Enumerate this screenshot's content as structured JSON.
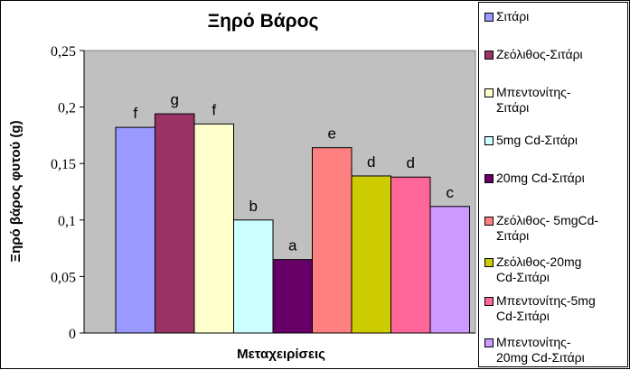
{
  "chart_data": {
    "type": "bar",
    "title": "Ξηρό Βάρος",
    "xlabel": "Μεταχειρίσεις",
    "ylabel": "Ξηρό βάρος φυτού (g)",
    "ylim": [
      0,
      0.25
    ],
    "yticks": [
      "0",
      "0,05",
      "0,1",
      "0,15",
      "0,2",
      "0,25"
    ],
    "grid": false,
    "plot_background": "#c0c0c0",
    "legend_position": "right",
    "series": [
      {
        "name": "Σιτάρι",
        "value": 0.182,
        "letter": "f",
        "color": "#9999ff"
      },
      {
        "name": "Ζεόλιθος-Σιτάρι",
        "value": 0.194,
        "letter": "g",
        "color": "#993366"
      },
      {
        "name": "Μπεντονίτης-Σιτάρι",
        "value": 0.185,
        "letter": "f",
        "color": "#ffffcc"
      },
      {
        "name": "5mg Cd-Σιτάρι",
        "value": 0.1,
        "letter": "b",
        "color": "#ccffff"
      },
      {
        "name": "20mg Cd-Σιτάρι",
        "value": 0.065,
        "letter": "a",
        "color": "#660066"
      },
      {
        "name": "Ζεόλιθος- 5mgCd-Σιτάρι",
        "value": 0.164,
        "letter": "e",
        "color": "#ff8080"
      },
      {
        "name": "Ζεόλιθος-20mg Cd-Σιτάρι",
        "value": 0.139,
        "letter": "d",
        "color": "#cccc00"
      },
      {
        "name": "Μπεντονίτης-5mg Cd-Σιτάρι",
        "value": 0.138,
        "letter": "d",
        "color": "#ff6699"
      },
      {
        "name": "Μπεντονίτης-20mg Cd-Σιτάρι",
        "value": 0.112,
        "letter": "c",
        "color": "#cc99ff"
      }
    ]
  },
  "legend": {
    "items": [
      {
        "lines": [
          "Σιτάρι"
        ]
      },
      {
        "lines": [
          "Ζεόλιθος-Σιτάρι"
        ]
      },
      {
        "lines": [
          "Μπεντονίτης-",
          "Σιτάρι"
        ]
      },
      {
        "lines": [
          "5mg Cd-Σιτάρι"
        ]
      },
      {
        "lines": [
          "20mg Cd-Σιτάρι"
        ]
      },
      {
        "lines": [
          "Ζεόλιθος- 5mgCd-",
          "Σιτάρι"
        ]
      },
      {
        "lines": [
          "Ζεόλιθος-20mg",
          "Cd-Σιτάρι"
        ]
      },
      {
        "lines": [
          "Μπεντονίτης-5mg",
          "Cd-Σιτάρι"
        ]
      },
      {
        "lines": [
          "Μπεντονίτης-",
          "20mg Cd-Σιτάρι"
        ]
      }
    ]
  }
}
